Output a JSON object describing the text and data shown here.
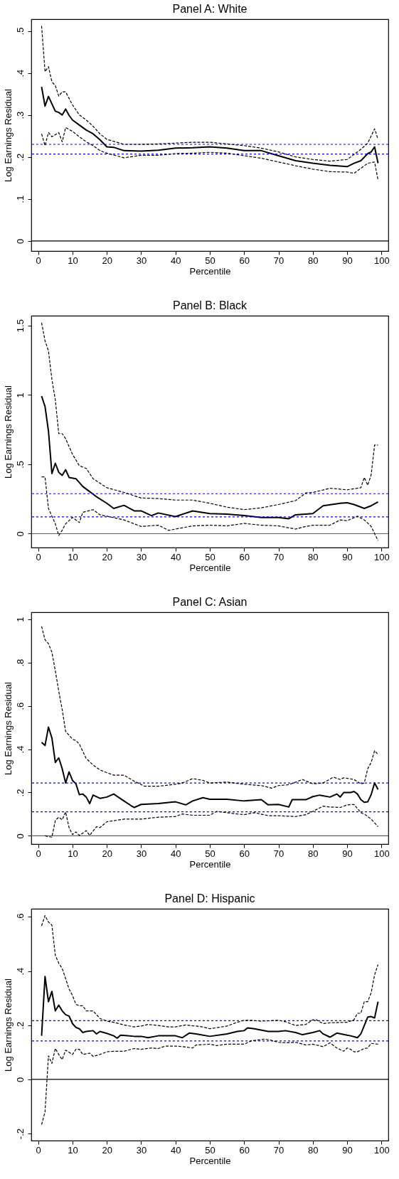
{
  "chart_data": [
    {
      "type": "line",
      "title": "Panel A: White",
      "xlabel": "Percentile",
      "ylabel": "Log Earnings Residual",
      "xlim": [
        -2,
        102
      ],
      "ylim": [
        -0.024,
        0.528
      ],
      "xticks": [
        0,
        10,
        20,
        30,
        40,
        50,
        60,
        70,
        80,
        90,
        100
      ],
      "yticks": [
        0,
        {
          "value": 0.1,
          "label": ".1"
        },
        {
          "value": 0.2,
          "label": ".2"
        },
        {
          "value": 0.3,
          "label": ".3"
        },
        {
          "value": 0.4,
          "label": ".4"
        },
        {
          "value": 0.5,
          "label": ".5"
        }
      ],
      "series": [
        {
          "color": "#000000",
          "line_style": "solid",
          "x": [
            1,
            2,
            3,
            5,
            6,
            7,
            8,
            9,
            10,
            12,
            14,
            16,
            18,
            20,
            22,
            25,
            30,
            35,
            40,
            45,
            50,
            55,
            60,
            65,
            70,
            75,
            80,
            85,
            90,
            92,
            94,
            96,
            97,
            98,
            99
          ],
          "values": [
            0.367,
            0.321,
            0.344,
            0.309,
            0.306,
            0.3,
            0.314,
            0.299,
            0.288,
            0.276,
            0.264,
            0.255,
            0.241,
            0.224,
            0.223,
            0.215,
            0.214,
            0.216,
            0.221,
            0.222,
            0.224,
            0.221,
            0.215,
            0.215,
            0.203,
            0.191,
            0.185,
            0.18,
            0.177,
            0.185,
            0.191,
            0.208,
            0.212,
            0.224,
            0.185
          ]
        },
        {
          "color": "#000000",
          "line_style": "dashed",
          "x": [
            1,
            2,
            3,
            4,
            5,
            6,
            7,
            8,
            10,
            12,
            14,
            16,
            18,
            20,
            25,
            30,
            35,
            40,
            45,
            50,
            55,
            60,
            65,
            70,
            75,
            80,
            85,
            90,
            92,
            94,
            96,
            98,
            99
          ],
          "values": [
            0.512,
            0.403,
            0.415,
            0.379,
            0.37,
            0.345,
            0.355,
            0.355,
            0.324,
            0.3,
            0.288,
            0.273,
            0.255,
            0.242,
            0.23,
            0.23,
            0.231,
            0.233,
            0.235,
            0.235,
            0.231,
            0.227,
            0.221,
            0.212,
            0.2,
            0.194,
            0.19,
            0.194,
            0.206,
            0.218,
            0.233,
            0.267,
            0.242
          ]
        },
        {
          "color": "#000000",
          "line_style": "dashed",
          "x": [
            1,
            2,
            3,
            4,
            6,
            7,
            8,
            10,
            12,
            14,
            16,
            18,
            20,
            25,
            30,
            35,
            40,
            45,
            50,
            55,
            60,
            65,
            70,
            75,
            80,
            85,
            90,
            92,
            94,
            96,
            98,
            99
          ],
          "values": [
            0.255,
            0.227,
            0.258,
            0.248,
            0.258,
            0.236,
            0.27,
            0.261,
            0.248,
            0.236,
            0.227,
            0.215,
            0.209,
            0.198,
            0.204,
            0.204,
            0.208,
            0.209,
            0.211,
            0.209,
            0.203,
            0.197,
            0.188,
            0.179,
            0.171,
            0.165,
            0.164,
            0.161,
            0.173,
            0.185,
            0.188,
            0.145
          ]
        }
      ],
      "ref_lines": [
        {
          "axis": "y",
          "value": 0,
          "color": "#000000",
          "line_style": "solid"
        },
        {
          "axis": "y",
          "value": 0.23,
          "color": "#0000ff",
          "line_style": "dotted"
        },
        {
          "axis": "y",
          "value": 0.207,
          "color": "#0000ff",
          "line_style": "dotted"
        }
      ]
    },
    {
      "type": "line",
      "title": "Panel B: Black",
      "xlabel": "Percentile",
      "ylabel": "Log Earnings Residual",
      "xlim": [
        -2,
        102
      ],
      "ylim": [
        -0.1,
        1.57
      ],
      "xticks": [
        0,
        10,
        20,
        30,
        40,
        50,
        60,
        70,
        80,
        90,
        100
      ],
      "yticks": [
        0,
        {
          "value": 0.5,
          "label": ".5"
        },
        1,
        1.5
      ],
      "series": [
        {
          "color": "#000000",
          "line_style": "solid",
          "x": [
            1,
            2,
            3,
            4,
            5,
            6,
            7,
            8,
            9,
            11,
            13,
            15,
            17,
            20,
            22,
            25,
            28,
            30,
            33,
            35,
            40,
            45,
            50,
            55,
            60,
            65,
            70,
            73,
            75,
            80,
            83,
            88,
            90,
            92,
            95,
            97,
            99
          ],
          "values": [
            0.991,
            0.916,
            0.74,
            0.433,
            0.507,
            0.442,
            0.42,
            0.461,
            0.405,
            0.396,
            0.34,
            0.303,
            0.266,
            0.219,
            0.182,
            0.204,
            0.164,
            0.164,
            0.13,
            0.149,
            0.123,
            0.164,
            0.145,
            0.141,
            0.13,
            0.117,
            0.117,
            0.108,
            0.136,
            0.145,
            0.201,
            0.219,
            0.223,
            0.21,
            0.182,
            0.201,
            0.229
          ]
        },
        {
          "color": "#000000",
          "line_style": "dashed",
          "x": [
            1,
            2,
            3,
            4,
            5,
            6,
            7,
            8,
            10,
            12,
            14,
            16,
            20,
            25,
            30,
            35,
            40,
            45,
            50,
            55,
            60,
            65,
            70,
            75,
            78,
            80,
            85,
            90,
            94,
            95,
            96,
            97,
            98,
            99
          ],
          "values": [
            1.52,
            1.39,
            1.316,
            1.112,
            0.963,
            0.721,
            0.721,
            0.684,
            0.572,
            0.489,
            0.47,
            0.396,
            0.331,
            0.297,
            0.257,
            0.253,
            0.242,
            0.242,
            0.219,
            0.191,
            0.173,
            0.186,
            0.21,
            0.238,
            0.294,
            0.297,
            0.327,
            0.316,
            0.331,
            0.405,
            0.349,
            0.424,
            0.638,
            0.638
          ]
        },
        {
          "color": "#000000",
          "line_style": "dashed",
          "x": [
            1,
            2,
            3,
            4,
            5,
            6,
            7,
            8,
            10,
            12,
            13,
            16,
            18,
            20,
            25,
            30,
            35,
            38,
            40,
            45,
            50,
            55,
            60,
            65,
            70,
            75,
            78,
            80,
            85,
            88,
            90,
            93,
            95,
            97,
            99
          ],
          "values": [
            0.409,
            0.409,
            0.182,
            0.126,
            0.071,
            -0.013,
            0.024,
            0.071,
            0.117,
            0.08,
            0.154,
            0.173,
            0.136,
            0.126,
            0.099,
            0.052,
            0.061,
            0.024,
            0.033,
            0.056,
            0.061,
            0.056,
            0.074,
            0.061,
            0.056,
            0.033,
            0.052,
            0.061,
            0.061,
            0.099,
            0.093,
            0.126,
            0.099,
            0.052,
            -0.05
          ]
        }
      ],
      "ref_lines": [
        {
          "axis": "y",
          "value": 0,
          "color": "#606060",
          "line_style": "solid"
        },
        {
          "axis": "y",
          "value": 0.288,
          "color": "#0000ff",
          "line_style": "dotted"
        },
        {
          "axis": "y",
          "value": 0.121,
          "color": "#0000ff",
          "line_style": "dotted"
        }
      ]
    },
    {
      "type": "line",
      "title": "Panel C: Asian",
      "xlabel": "Percentile",
      "ylabel": "Log Earnings Residual",
      "xlim": [
        -2,
        102
      ],
      "ylim": [
        -0.038,
        1.032
      ],
      "xticks": [
        0,
        10,
        20,
        30,
        40,
        50,
        60,
        70,
        80,
        90,
        100
      ],
      "yticks": [
        0,
        {
          "value": 0.2,
          "label": ".2"
        },
        {
          "value": 0.4,
          "label": ".4"
        },
        {
          "value": 0.6,
          "label": ".6"
        },
        {
          "value": 0.8,
          "label": ".8"
        },
        1
      ],
      "series": [
        {
          "color": "#000000",
          "line_style": "solid",
          "x": [
            1,
            2,
            3,
            4,
            5,
            6,
            7,
            8,
            9,
            10,
            11,
            12,
            13,
            14,
            15,
            16,
            18,
            20,
            22,
            25,
            27,
            28,
            30,
            35,
            40,
            43,
            45,
            48,
            50,
            55,
            60,
            65,
            67,
            70,
            73,
            74,
            78,
            80,
            82,
            85,
            87,
            88,
            89,
            91,
            92,
            93,
            94,
            95,
            96,
            97,
            98,
            99
          ],
          "values": [
            0.431,
            0.417,
            0.502,
            0.452,
            0.339,
            0.36,
            0.31,
            0.244,
            0.295,
            0.256,
            0.24,
            0.19,
            0.193,
            0.179,
            0.149,
            0.188,
            0.173,
            0.179,
            0.193,
            0.161,
            0.14,
            0.131,
            0.145,
            0.149,
            0.157,
            0.143,
            0.161,
            0.176,
            0.169,
            0.169,
            0.161,
            0.167,
            0.143,
            0.145,
            0.133,
            0.167,
            0.167,
            0.181,
            0.188,
            0.179,
            0.193,
            0.179,
            0.2,
            0.2,
            0.205,
            0.193,
            0.167,
            0.155,
            0.157,
            0.19,
            0.244,
            0.214
          ]
        },
        {
          "color": "#000000",
          "line_style": "dashed",
          "x": [
            1,
            2,
            3,
            4,
            5,
            6,
            7,
            8,
            10,
            11,
            12,
            14,
            16,
            18,
            20,
            22,
            25,
            28,
            31,
            35,
            40,
            42,
            45,
            48,
            50,
            55,
            60,
            65,
            68,
            70,
            73,
            77,
            80,
            83,
            86,
            88,
            89,
            92,
            94,
            95,
            96,
            97,
            98,
            99
          ],
          "values": [
            0.967,
            0.905,
            0.887,
            0.848,
            0.762,
            0.667,
            0.583,
            0.482,
            0.446,
            0.44,
            0.423,
            0.357,
            0.327,
            0.304,
            0.292,
            0.28,
            0.28,
            0.252,
            0.229,
            0.229,
            0.238,
            0.244,
            0.264,
            0.256,
            0.244,
            0.248,
            0.238,
            0.232,
            0.22,
            0.232,
            0.236,
            0.26,
            0.24,
            0.244,
            0.271,
            0.26,
            0.268,
            0.26,
            0.24,
            0.244,
            0.31,
            0.339,
            0.393,
            0.375
          ]
        },
        {
          "color": "#000000",
          "line_style": "dashed",
          "x": [
            2,
            3,
            4,
            5,
            6,
            7,
            8,
            9,
            10,
            11,
            12,
            14,
            15,
            17,
            18,
            20,
            25,
            30,
            35,
            40,
            42,
            45,
            50,
            52,
            55,
            58,
            60,
            63,
            67,
            70,
            75,
            78,
            80,
            83,
            85,
            88,
            90,
            92,
            94,
            95,
            97,
            98,
            99
          ],
          "values": [
            0,
            -0.004,
            -0.006,
            0.071,
            0.086,
            0.074,
            0.11,
            0.038,
            0.006,
            0.018,
            0.002,
            0.024,
            0.002,
            0.042,
            0.038,
            0.065,
            0.077,
            0.077,
            0.086,
            0.089,
            0.101,
            0.095,
            0.095,
            0.113,
            0.107,
            0.101,
            0.098,
            0.107,
            0.093,
            0.093,
            0.089,
            0.098,
            0.113,
            0.137,
            0.133,
            0.131,
            0.143,
            0.145,
            0.107,
            0.101,
            0.077,
            0.06,
            0.042
          ]
        }
      ],
      "ref_lines": [
        {
          "axis": "y",
          "value": 0,
          "color": "#606060",
          "line_style": "solid"
        },
        {
          "axis": "y",
          "value": 0.244,
          "color": "#0000ff",
          "line_style": "dotted"
        },
        {
          "axis": "y",
          "value": 0.111,
          "color": "#0000ff",
          "line_style": "dotted"
        }
      ]
    },
    {
      "type": "line",
      "title": "Panel D: Hispanic",
      "xlabel": "Percentile",
      "ylabel": "Log Earnings Residual",
      "xlim": [
        -2,
        102
      ],
      "ylim": [
        -0.226,
        0.63
      ],
      "xticks": [
        0,
        10,
        20,
        30,
        40,
        50,
        60,
        70,
        80,
        90,
        100
      ],
      "yticks": [
        {
          "value": -0.2,
          "label": "-.2"
        },
        0,
        {
          "value": 0.2,
          "label": ".2"
        },
        {
          "value": 0.4,
          "label": ".4"
        },
        {
          "value": 0.6,
          "label": ".6"
        }
      ],
      "series": [
        {
          "color": "#000000",
          "line_style": "solid",
          "x": [
            1,
            2,
            3,
            4,
            5,
            6,
            7,
            8,
            9,
            10,
            11,
            12,
            13,
            14,
            16,
            17,
            18,
            20,
            22,
            23,
            24,
            26,
            28,
            30,
            32,
            35,
            40,
            42,
            44,
            46,
            50,
            55,
            58,
            60,
            61,
            63,
            67,
            70,
            72,
            75,
            77,
            80,
            82,
            83,
            85,
            87,
            90,
            91,
            93,
            94,
            95,
            96,
            97,
            98,
            99
          ],
          "values": [
            0.161,
            0.38,
            0.287,
            0.325,
            0.253,
            0.274,
            0.253,
            0.239,
            0.234,
            0.206,
            0.192,
            0.187,
            0.173,
            0.177,
            0.18,
            0.168,
            0.177,
            0.17,
            0.161,
            0.152,
            0.163,
            0.161,
            0.159,
            0.159,
            0.154,
            0.161,
            0.161,
            0.154,
            0.171,
            0.168,
            0.159,
            0.168,
            0.177,
            0.18,
            0.19,
            0.187,
            0.177,
            0.177,
            0.18,
            0.173,
            0.165,
            0.173,
            0.18,
            0.168,
            0.156,
            0.171,
            0.163,
            0.161,
            0.154,
            0.168,
            0.199,
            0.23,
            0.232,
            0.227,
            0.287
          ]
        },
        {
          "color": "#000000",
          "line_style": "dashed",
          "x": [
            1,
            2,
            3,
            4,
            5,
            6,
            7,
            8,
            9,
            10,
            11,
            12,
            13,
            14,
            16,
            18,
            20,
            22,
            25,
            28,
            30,
            32,
            35,
            38,
            40,
            43,
            48,
            50,
            55,
            58,
            60,
            62,
            65,
            70,
            72,
            75,
            78,
            80,
            81,
            83,
            85,
            90,
            92,
            93,
            94,
            95,
            96,
            97,
            98,
            99
          ],
          "values": [
            0.567,
            0.605,
            0.581,
            0.57,
            0.458,
            0.429,
            0.41,
            0.372,
            0.334,
            0.31,
            0.277,
            0.272,
            0.272,
            0.253,
            0.253,
            0.225,
            0.215,
            0.211,
            0.201,
            0.194,
            0.197,
            0.203,
            0.199,
            0.194,
            0.194,
            0.201,
            0.194,
            0.187,
            0.197,
            0.211,
            0.218,
            0.218,
            0.215,
            0.218,
            0.213,
            0.199,
            0.203,
            0.22,
            0.22,
            0.206,
            0.209,
            0.211,
            0.22,
            0.244,
            0.244,
            0.287,
            0.287,
            0.32,
            0.386,
            0.424
          ]
        },
        {
          "color": "#000000",
          "line_style": "dashed",
          "x": [
            1,
            2,
            3,
            4,
            5,
            6,
            7,
            8,
            10,
            11,
            12,
            13,
            15,
            16,
            18,
            20,
            22,
            25,
            28,
            30,
            33,
            35,
            37,
            40,
            42,
            45,
            46,
            50,
            52,
            55,
            60,
            62,
            66,
            68,
            70,
            72,
            75,
            78,
            80,
            83,
            85,
            87,
            89,
            90,
            91,
            92,
            93,
            95,
            96,
            97,
            99
          ],
          "values": [
            -0.167,
            -0.12,
            0.087,
            0.059,
            0.114,
            0.092,
            0.073,
            0.108,
            0.092,
            0.111,
            0.111,
            0.092,
            0.097,
            0.085,
            0.092,
            0.102,
            0.104,
            0.104,
            0.114,
            0.111,
            0.116,
            0.114,
            0.123,
            0.123,
            0.121,
            0.116,
            0.127,
            0.13,
            0.125,
            0.13,
            0.13,
            0.142,
            0.149,
            0.144,
            0.137,
            0.135,
            0.137,
            0.127,
            0.13,
            0.121,
            0.135,
            0.116,
            0.104,
            0.116,
            0.111,
            0.102,
            0.102,
            0.114,
            0.116,
            0.133,
            0.13
          ]
        }
      ],
      "ref_lines": [
        {
          "axis": "y",
          "value": 0,
          "color": "#000000",
          "line_style": "solid"
        },
        {
          "axis": "y",
          "value": 0.217,
          "color": "#0000ff",
          "line_style": "dotted"
        },
        {
          "axis": "y",
          "value": 0.142,
          "color": "#0000ff",
          "line_style": "dotted"
        }
      ]
    }
  ]
}
